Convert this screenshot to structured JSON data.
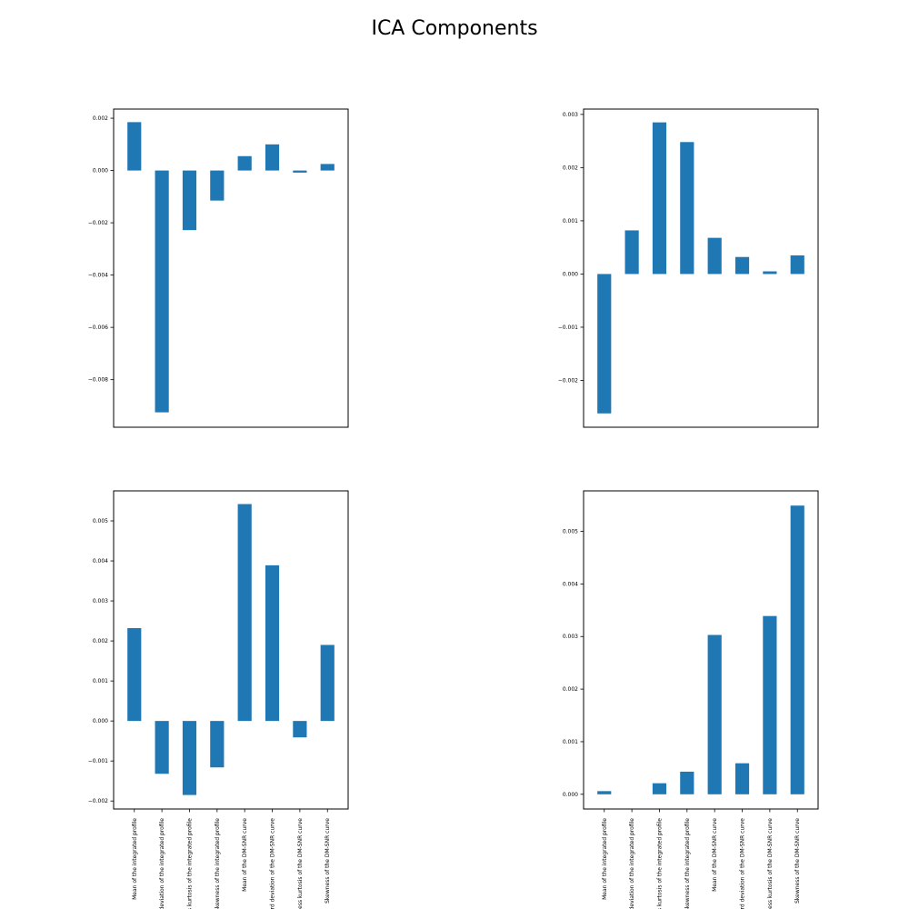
{
  "figure": {
    "title": "ICA Components",
    "bar_color": "#1f77b4"
  },
  "chart_data": [
    {
      "type": "bar",
      "title": "",
      "xlabel": "",
      "ylabel": "",
      "categories": [
        "Mean of the integrated profile",
        "Standard deviation of the integrated profile",
        "Excess kurtosis of the integrated profile",
        "Skewness of the integrated profile",
        "Mean of the DM-SNR curve",
        "Standard deviation of the DM-SNR curve",
        "Excess kurtosis of the DM-SNR curve",
        "Skewness of the DM-SNR curve"
      ],
      "values": [
        0.00185,
        -0.00925,
        -0.00228,
        -0.00115,
        0.00055,
        0.001,
        -8e-05,
        0.00025
      ],
      "ylim": [
        -0.00982,
        0.00235
      ],
      "yticks": [
        -0.008,
        -0.006,
        -0.004,
        -0.002,
        0.0,
        0.002
      ],
      "yticklabels": [
        "−0.008",
        "−0.006",
        "−0.004",
        "−0.002",
        "0.000",
        "0.002"
      ],
      "show_xticklabels": false
    },
    {
      "type": "bar",
      "title": "",
      "xlabel": "",
      "ylabel": "",
      "categories": [
        "Mean of the integrated profile",
        "Standard deviation of the integrated profile",
        "Excess kurtosis of the integrated profile",
        "Skewness of the integrated profile",
        "Mean of the DM-SNR curve",
        "Standard deviation of the DM-SNR curve",
        "Excess kurtosis of the DM-SNR curve",
        "Skewness of the DM-SNR curve"
      ],
      "values": [
        -0.00262,
        0.00082,
        0.00285,
        0.00248,
        0.00068,
        0.00032,
        5e-05,
        0.00035
      ],
      "ylim": [
        -0.00288,
        0.0031
      ],
      "yticks": [
        -0.002,
        -0.001,
        0.0,
        0.001,
        0.002,
        0.003
      ],
      "yticklabels": [
        "−0.002",
        "−0.001",
        "0.000",
        "0.001",
        "0.002",
        "0.003"
      ],
      "show_xticklabels": false
    },
    {
      "type": "bar",
      "title": "",
      "xlabel": "",
      "ylabel": "",
      "categories": [
        "Mean of the integrated profile",
        "Standard deviation of the integrated profile",
        "Excess kurtosis of the integrated profile",
        "Skewness of the integrated profile",
        "Mean of the DM-SNR curve",
        "Standard deviation of the DM-SNR curve",
        "Excess kurtosis of the DM-SNR curve",
        "Skewness of the DM-SNR curve"
      ],
      "xticklabels": [
        "Mean of the integrated profile",
        "Standard deviation of the integrated profile",
        "Excess kurtosis of the integrated profile",
        "Skewness of the integrated profile",
        "Mean of the DM-SNR curve",
        "Standard deviation of the DM-SNR curve",
        "Excess kurtosis of the DM-SNR curve",
        "Skewness of the DM-SNR curve"
      ],
      "values": [
        0.00232,
        -0.00132,
        -0.00185,
        -0.00116,
        0.00542,
        0.00389,
        -0.00041,
        0.0019
      ],
      "ylim": [
        -0.0022,
        0.00575
      ],
      "yticks": [
        -0.002,
        -0.001,
        0.0,
        0.001,
        0.002,
        0.003,
        0.004,
        0.005
      ],
      "yticklabels": [
        "−0.002",
        "−0.001",
        "0.000",
        "0.001",
        "0.002",
        "0.003",
        "0.004",
        "0.005"
      ],
      "show_xticklabels": true
    },
    {
      "type": "bar",
      "title": "",
      "xlabel": "",
      "ylabel": "",
      "categories": [
        "Mean of the integrated profile",
        "Standard deviation of the integrated profile",
        "Excess kurtosis of the integrated profile",
        "Skewness of the integrated profile",
        "Mean of the DM-SNR curve",
        "Standard deviation of the DM-SNR curve",
        "Excess kurtosis of the DM-SNR curve",
        "Skewness of the DM-SNR curve"
      ],
      "xticklabels": [
        "Mean of the integrated profile",
        "Standard deviation of the integrated profile",
        "Excess kurtosis of the integrated profile",
        "Skewness of the integrated profile",
        "Mean of the DM-SNR curve",
        "Standard deviation of the DM-SNR curve",
        "Excess kurtosis of the DM-SNR curve",
        "Skewness of the DM-SNR curve"
      ],
      "values": [
        6e-05,
        0.0,
        0.00021,
        0.00043,
        0.00303,
        0.00059,
        0.00339,
        0.00549
      ],
      "ylim": [
        -0.00028,
        0.00577
      ],
      "yticks": [
        0.0,
        0.001,
        0.002,
        0.003,
        0.004,
        0.005
      ],
      "yticklabels": [
        "0.000",
        "0.001",
        "0.002",
        "0.003",
        "0.004",
        "0.005"
      ],
      "show_xticklabels": true
    }
  ]
}
